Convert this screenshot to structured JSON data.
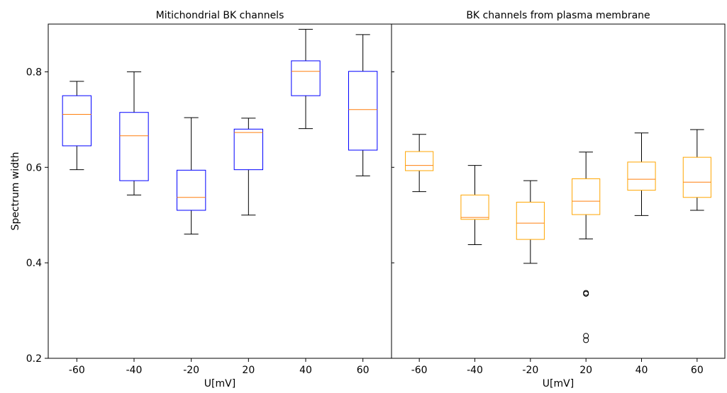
{
  "chart_data": [
    {
      "type": "box",
      "title": "Mitichondrial BK channels",
      "xlabel": "U[mV]",
      "ylabel": "Spectrum width",
      "categories": [
        "-60",
        "-40",
        "-20",
        "20",
        "40",
        "60"
      ],
      "ylim": [
        0.2,
        0.9
      ],
      "yticks": [
        "0.2",
        "0.4",
        "0.6",
        "0.8"
      ],
      "box_color": "#0000ff",
      "median_color": "#ff7f0e",
      "whisker_color": "#000000",
      "boxes": [
        {
          "whisker_low": 0.595,
          "q1": 0.645,
          "median": 0.711,
          "q3": 0.75,
          "whisker_high": 0.78,
          "outliers": []
        },
        {
          "whisker_low": 0.542,
          "q1": 0.572,
          "median": 0.666,
          "q3": 0.715,
          "whisker_high": 0.8,
          "outliers": []
        },
        {
          "whisker_low": 0.46,
          "q1": 0.51,
          "median": 0.537,
          "q3": 0.594,
          "whisker_high": 0.704,
          "outliers": []
        },
        {
          "whisker_low": 0.5,
          "q1": 0.595,
          "median": 0.673,
          "q3": 0.68,
          "whisker_high": 0.703,
          "outliers": []
        },
        {
          "whisker_low": 0.681,
          "q1": 0.75,
          "median": 0.801,
          "q3": 0.823,
          "whisker_high": 0.889,
          "outliers": []
        },
        {
          "whisker_low": 0.582,
          "q1": 0.636,
          "median": 0.721,
          "q3": 0.801,
          "whisker_high": 0.878,
          "outliers": []
        }
      ]
    },
    {
      "type": "box",
      "title": "BK channels from plasma membrane",
      "xlabel": "U[mV]",
      "ylabel": "",
      "categories": [
        "-60",
        "-40",
        "-20",
        "20",
        "40",
        "60"
      ],
      "ylim": [
        0.2,
        0.9
      ],
      "box_color": "#ffa500",
      "median_color": "#ff7f0e",
      "whisker_color": "#000000",
      "boxes": [
        {
          "whisker_low": 0.549,
          "q1": 0.593,
          "median": 0.604,
          "q3": 0.633,
          "whisker_high": 0.669,
          "outliers": []
        },
        {
          "whisker_low": 0.438,
          "q1": 0.491,
          "median": 0.495,
          "q3": 0.542,
          "whisker_high": 0.604,
          "outliers": []
        },
        {
          "whisker_low": 0.399,
          "q1": 0.449,
          "median": 0.483,
          "q3": 0.527,
          "whisker_high": 0.572,
          "outliers": []
        },
        {
          "whisker_low": 0.45,
          "q1": 0.501,
          "median": 0.529,
          "q3": 0.576,
          "whisker_high": 0.632,
          "outliers": [
            0.337,
            0.335,
            0.247,
            0.238
          ]
        },
        {
          "whisker_low": 0.499,
          "q1": 0.552,
          "median": 0.575,
          "q3": 0.611,
          "whisker_high": 0.672,
          "outliers": []
        },
        {
          "whisker_low": 0.51,
          "q1": 0.537,
          "median": 0.569,
          "q3": 0.621,
          "whisker_high": 0.679,
          "outliers": []
        }
      ]
    }
  ]
}
